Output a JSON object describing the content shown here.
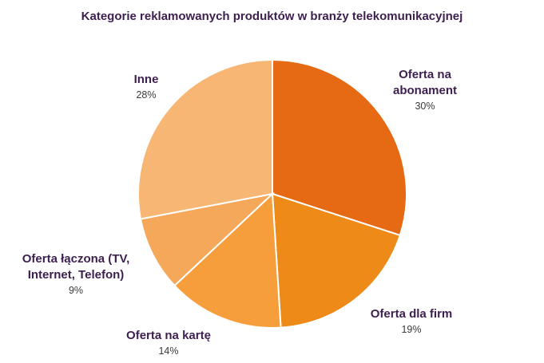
{
  "chart_data": {
    "type": "pie",
    "title": "Kategorie reklamowanych produktów w branży telekomunikacyjnej",
    "slices": [
      {
        "label_lines": [
          "Oferta na",
          "abonament"
        ],
        "value": 30,
        "value_label": "30%",
        "color": "#e56a13"
      },
      {
        "label_lines": [
          "Oferta dla firm"
        ],
        "value": 19,
        "value_label": "19%",
        "color": "#ee8a17"
      },
      {
        "label_lines": [
          "Oferta na kartę"
        ],
        "value": 14,
        "value_label": "14%",
        "color": "#f59e3b"
      },
      {
        "label_lines": [
          "Oferta łączona (TV,",
          "Internet, Telefon)"
        ],
        "value": 9,
        "value_label": "9%",
        "color": "#f5a85a"
      },
      {
        "label_lines": [
          "Inne"
        ],
        "value": 28,
        "value_label": "28%",
        "color": "#f7b673"
      }
    ]
  }
}
